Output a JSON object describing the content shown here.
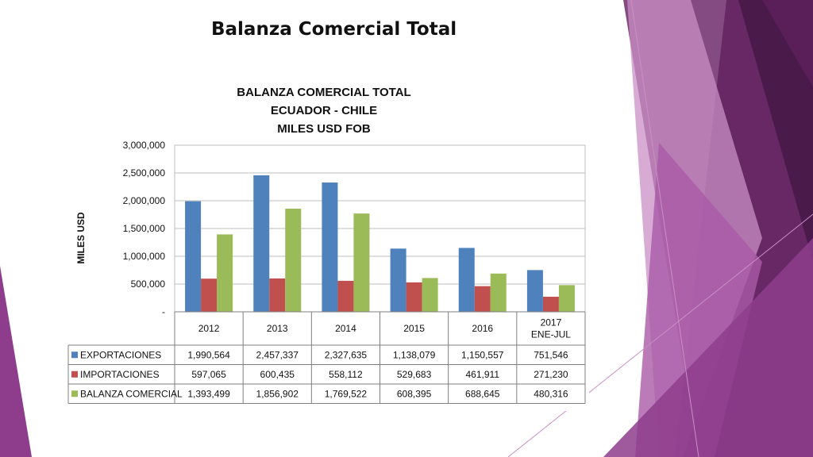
{
  "slide": {
    "title": "Balanza Comercial Total"
  },
  "colors": {
    "exportaciones": "#4f81bd",
    "importaciones": "#c0504d",
    "balanza": "#9bbb59",
    "decor_dark": "#4a1a4a",
    "decor_mid": "#8e3d8c",
    "decor_light": "#c98fc5"
  },
  "chart_data": {
    "type": "bar",
    "title_lines": [
      "BALANZA COMERCIAL TOTAL",
      "ECUADOR - CHILE",
      "MILES USD FOB"
    ],
    "ylabel": "MILES USD",
    "xlabel": "",
    "ylim": [
      0,
      3000000
    ],
    "y_ticks": [
      0,
      500000,
      1000000,
      1500000,
      2000000,
      2500000,
      3000000
    ],
    "y_tick_labels": [
      "-",
      "500,000",
      "1,000,000",
      "1,500,000",
      "2,000,000",
      "2,500,000",
      "3,000,000"
    ],
    "categories": [
      "2012",
      "2013",
      "2014",
      "2015",
      "2016",
      "2017 ENE-JUL"
    ],
    "category_lines": [
      [
        "2012"
      ],
      [
        "2013"
      ],
      [
        "2014"
      ],
      [
        "2015"
      ],
      [
        "2016"
      ],
      [
        "2017",
        "ENE-JUL"
      ]
    ],
    "grid": true,
    "legend": "data-table",
    "series": [
      {
        "name": "EXPORTACIONES",
        "values": [
          1990564,
          2457337,
          2327635,
          1138079,
          1150557,
          751546
        ],
        "labels": [
          "1,990,564",
          "2,457,337",
          "2,327,635",
          "1,138,079",
          "1,150,557",
          "751,546"
        ]
      },
      {
        "name": "IMPORTACIONES",
        "values": [
          597065,
          600435,
          558112,
          529683,
          461911,
          271230
        ],
        "labels": [
          "597,065",
          "600,435",
          "558,112",
          "529,683",
          "461,911",
          "271,230"
        ]
      },
      {
        "name": "BALANZA COMERCIAL",
        "values": [
          1393499,
          1856902,
          1769522,
          608395,
          688645,
          480316
        ],
        "labels": [
          "1,393,499",
          "1,856,902",
          "1,769,522",
          "608,395",
          "688,645",
          "480,316"
        ]
      }
    ]
  }
}
